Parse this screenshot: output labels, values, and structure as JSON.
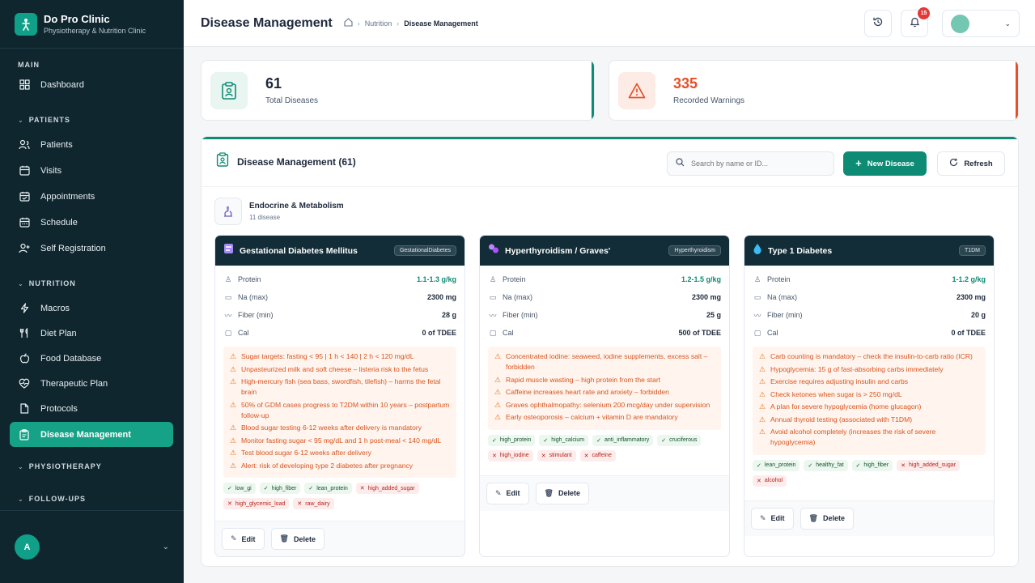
{
  "brand": {
    "name": "Do Pro Clinic",
    "subtitle": "Physiotherapy & Nutrition Clinic",
    "logo_icon": "figure-icon"
  },
  "sidebar": {
    "main_section": "MAIN",
    "dashboard": "Dashboard",
    "patients_section": "PATIENTS",
    "patients_items": [
      "Patients",
      "Visits",
      "Appointments",
      "Schedule",
      "Self Registration"
    ],
    "nutrition_section": "NUTRITION",
    "nutrition_items": [
      "Macros",
      "Diet Plan",
      "Food Database",
      "Therapeutic Plan",
      "Protocols",
      "Disease Management"
    ],
    "physio_section": "PHYSIOTHERAPY",
    "followups_section": "FOLLOW-UPS",
    "user_initial": "A"
  },
  "header": {
    "title": "Disease Management",
    "breadcrumb": [
      "Nutrition",
      "Disease Management"
    ],
    "notifications": "15"
  },
  "stats": {
    "diseases_value": "61",
    "diseases_label": "Total Diseases",
    "warnings_value": "335",
    "warnings_label": "Recorded Warnings"
  },
  "panel": {
    "title": "Disease Management (61)",
    "search_placeholder": "Search by name or ID...",
    "new_button": "New Disease",
    "refresh_button": "Refresh"
  },
  "category": {
    "name": "Endocrine & Metabolism",
    "count": "11 disease"
  },
  "labels": {
    "protein": "Protein",
    "na": "Na (max)",
    "fiber": "Fiber (min)",
    "cal": "Cal",
    "edit": "Edit",
    "delete": "Delete"
  },
  "cards": [
    {
      "title": "Gestational Diabetes Mellitus",
      "tag": "GestationalDiabetes",
      "protein": "1.1-1.3 g/kg",
      "na": "2300 mg",
      "fiber": "28 g",
      "cal": "0 of TDEE",
      "warnings": [
        "Sugar targets: fasting < 95 | 1 h < 140 | 2 h < 120 mg/dL",
        "Unpasteurized milk and soft cheese – listeria risk to the fetus",
        "High-mercury fish (sea bass, swordfish, tilefish) – harms the fetal brain",
        "50% of GDM cases progress to T2DM within 10 years – postpartum follow-up",
        "Blood sugar testing 6-12 weeks after delivery is mandatory",
        "Monitor fasting sugar < 95 mg/dL and 1 h post-meal < 140 mg/dL",
        "Test blood sugar 6-12 weeks after delivery",
        "Alert: risk of developing type 2 diabetes after pregnancy"
      ],
      "good_tags": [
        "low_gi",
        "high_fiber",
        "lean_protein"
      ],
      "bad_tags": [
        "high_added_sugar",
        "high_glycemic_load",
        "raw_dairy"
      ]
    },
    {
      "title": "Hyperthyroidism / Graves'",
      "tag": "Hyperthyroidism",
      "protein": "1.2-1.5 g/kg",
      "na": "2300 mg",
      "fiber": "25 g",
      "cal": "500 of TDEE",
      "warnings": [
        "Concentrated iodine: seaweed, iodine supplements, excess salt – forbidden",
        "Rapid muscle wasting – high protein from the start",
        "Caffeine increases heart rate and anxiety – forbidden",
        "Graves ophthalmopathy: selenium 200 mcg/day under supervision",
        "Early osteoporosis – calcium + vitamin D are mandatory"
      ],
      "good_tags": [
        "high_protein",
        "high_calcium",
        "anti_inflammatory",
        "cruciferous"
      ],
      "bad_tags": [
        "high_iodine",
        "stimulant",
        "caffeine"
      ]
    },
    {
      "title": "Type 1 Diabetes",
      "tag": "T1DM",
      "protein": "1-1.2 g/kg",
      "na": "2300 mg",
      "fiber": "20 g",
      "cal": "0 of TDEE",
      "warnings": [
        "Carb counting is mandatory – check the insulin-to-carb ratio (ICR)",
        "Hypoglycemia: 15 g of fast-absorbing carbs immediately",
        "Exercise requires adjusting insulin and carbs",
        "Check ketones when sugar is > 250 mg/dL",
        "A plan for severe hypoglycemia (home glucagon)",
        "Annual thyroid testing (associated with T1DM)",
        "Avoid alcohol completely (increases the risk of severe hypoglycemia)"
      ],
      "good_tags": [
        "lean_protein",
        "healthy_fat",
        "high_fiber"
      ],
      "bad_tags": [
        "high_added_sugar",
        "alcohol"
      ]
    }
  ],
  "colors": {
    "accent": "#0e8b74",
    "sidebar": "#10262f",
    "warning": "#e2711d"
  }
}
